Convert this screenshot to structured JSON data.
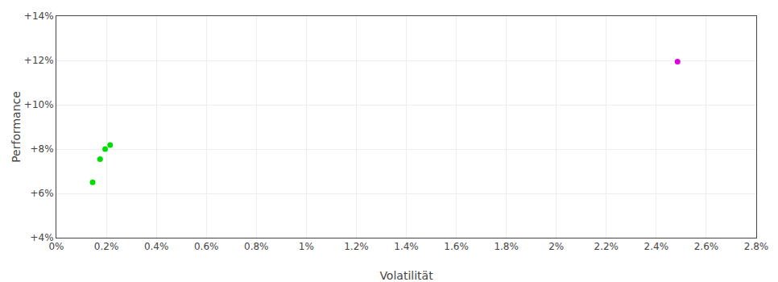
{
  "chart_data": {
    "type": "scatter",
    "xlabel": "Volatilität",
    "ylabel": "Performance",
    "xlim": [
      0.0,
      0.028
    ],
    "ylim": [
      0.04,
      0.14
    ],
    "xticks": [
      {
        "value": 0.0,
        "label": "0%"
      },
      {
        "value": 0.002,
        "label": "0.2%"
      },
      {
        "value": 0.004,
        "label": "0.4%"
      },
      {
        "value": 0.006,
        "label": "0.6%"
      },
      {
        "value": 0.008,
        "label": "0.8%"
      },
      {
        "value": 0.01,
        "label": "1%"
      },
      {
        "value": 0.012,
        "label": "1.2%"
      },
      {
        "value": 0.014,
        "label": "1.4%"
      },
      {
        "value": 0.016,
        "label": "1.6%"
      },
      {
        "value": 0.018,
        "label": "1.8%"
      },
      {
        "value": 0.02,
        "label": "2%"
      },
      {
        "value": 0.022,
        "label": "2.2%"
      },
      {
        "value": 0.024,
        "label": "2.4%"
      },
      {
        "value": 0.026,
        "label": "2.6%"
      },
      {
        "value": 0.028,
        "label": "2.8%"
      }
    ],
    "yticks": [
      {
        "value": 0.04,
        "label": "+4%"
      },
      {
        "value": 0.06,
        "label": "+6%"
      },
      {
        "value": 0.08,
        "label": "+8%"
      },
      {
        "value": 0.1,
        "label": "+10%"
      },
      {
        "value": 0.12,
        "label": "+12%"
      },
      {
        "value": 0.14,
        "label": "+14%"
      }
    ],
    "grid": true,
    "series": [
      {
        "color": "#00dd00",
        "x": [
          0.00195,
          0.00215,
          0.00175,
          0.00145
        ],
        "values": [
          0.08,
          0.0818,
          0.0755,
          0.065
        ]
      },
      {
        "color": "#dd00dd",
        "x": [
          0.02485
        ],
        "values": [
          0.1195
        ]
      }
    ]
  }
}
